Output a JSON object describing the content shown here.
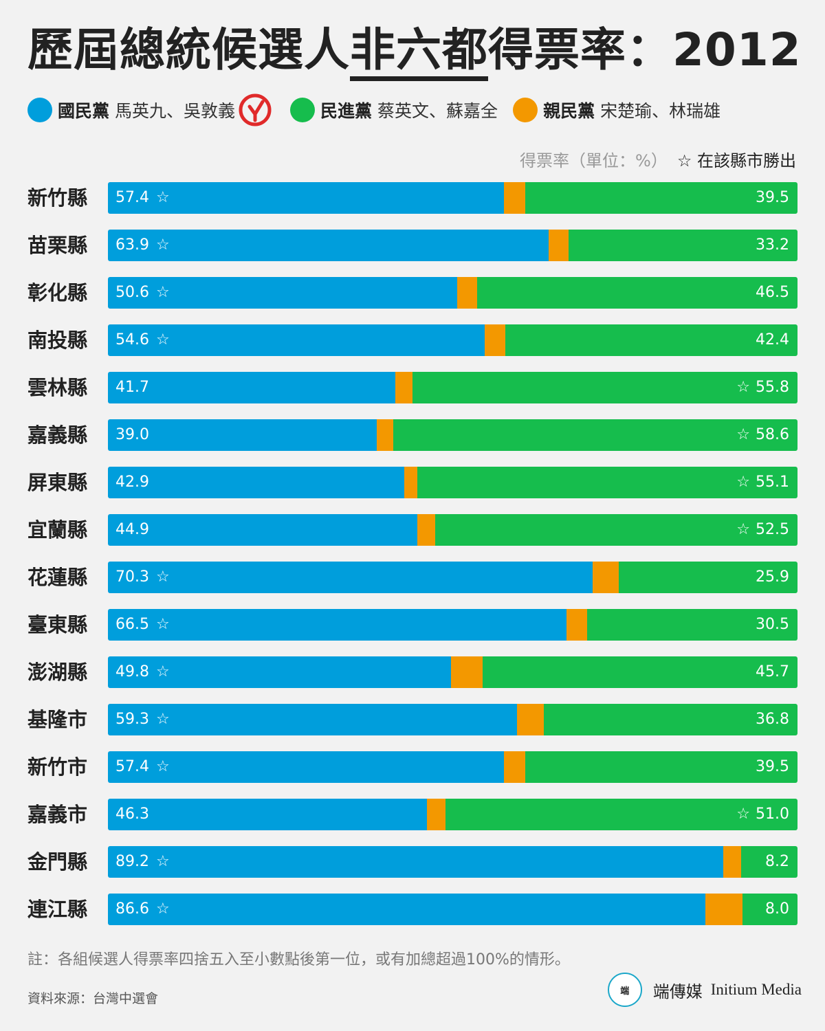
{
  "header": {
    "title_pre": "歷屆總統候選人",
    "title_underlined": "非六都",
    "title_post": "得票率：2012"
  },
  "legend": [
    {
      "party": "國民黨",
      "candidates": "馬英九、吳敦義",
      "color": "#009edc",
      "winner": true
    },
    {
      "party": "民進黨",
      "candidates": "蔡英文、蘇嘉全",
      "color": "#16bd4d",
      "winner": false
    },
    {
      "party": "親民黨",
      "candidates": "宋楚瑜、林瑞雄",
      "color": "#f39800",
      "winner": false
    }
  ],
  "winner_icon": "checked-ballot-icon",
  "unit_note": "得票率（單位：%）",
  "star_note": "☆ 在該縣市勝出",
  "chart_data": {
    "type": "bar",
    "orientation": "horizontal",
    "stacked": true,
    "xlim": [
      0,
      100
    ],
    "categories": [
      "新竹縣",
      "苗栗縣",
      "彰化縣",
      "南投縣",
      "雲林縣",
      "嘉義縣",
      "屏東縣",
      "宜蘭縣",
      "花蓮縣",
      "臺東縣",
      "澎湖縣",
      "基隆市",
      "新竹市",
      "嘉義市",
      "金門縣",
      "連江縣"
    ],
    "series": [
      {
        "name": "國民黨",
        "color": "#009edc",
        "values": [
          57.4,
          63.9,
          50.6,
          54.6,
          41.7,
          39.0,
          42.9,
          44.9,
          70.3,
          66.5,
          49.8,
          59.3,
          57.4,
          46.3,
          89.2,
          86.6
        ]
      },
      {
        "name": "親民黨",
        "color": "#f39800",
        "values": [
          3.1,
          2.9,
          2.9,
          3.0,
          2.5,
          2.4,
          1.9,
          2.6,
          3.8,
          3.0,
          4.5,
          3.9,
          3.1,
          2.7,
          2.6,
          5.4
        ]
      },
      {
        "name": "民進黨",
        "color": "#16bd4d",
        "values": [
          39.5,
          33.2,
          46.5,
          42.4,
          55.8,
          58.6,
          55.1,
          52.5,
          25.9,
          30.5,
          45.7,
          36.8,
          39.5,
          51.0,
          8.2,
          8.0
        ]
      }
    ],
    "value_labels": {
      "left": [
        "57.4",
        "63.9",
        "50.6",
        "54.6",
        "41.7",
        "39.0",
        "42.9",
        "44.9",
        "70.3",
        "66.5",
        "49.8",
        "59.3",
        "57.4",
        "46.3",
        "89.2",
        "86.6"
      ],
      "right": [
        "39.5",
        "33.2",
        "46.5",
        "42.4",
        "55.8",
        "58.6",
        "55.1",
        "52.5",
        "25.9",
        "30.5",
        "45.7",
        "36.8",
        "39.5",
        "51.0",
        "8.2",
        "8.0"
      ]
    },
    "county_winner": [
      "國民黨",
      "國民黨",
      "國民黨",
      "國民黨",
      "民進黨",
      "民進黨",
      "民進黨",
      "民進黨",
      "國民黨",
      "國民黨",
      "國民黨",
      "國民黨",
      "國民黨",
      "民進黨",
      "國民黨",
      "國民黨"
    ],
    "star_symbol": "☆"
  },
  "footnote": "註：各組候選人得票率四捨五入至小數點後第一位，或有加總超過100%的情形。",
  "source": "資料來源：台灣中選會",
  "brand": {
    "name_cn": "端傳媒",
    "name_en": "Initium Media",
    "logo_text": "端"
  }
}
